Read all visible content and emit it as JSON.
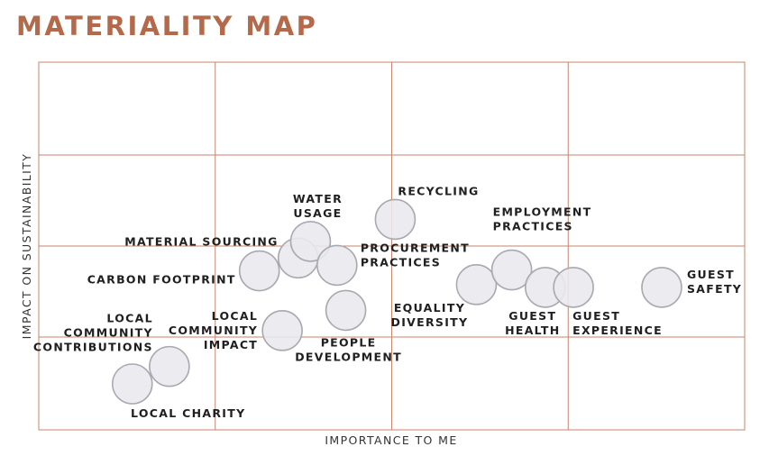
{
  "colors": {
    "title": "#b4694a",
    "grid": "#c7866b",
    "bubble_fill": "#e9e9ee",
    "bubble_stroke": "#a9a9b2",
    "text": "#1f1f1f"
  },
  "chart_data": {
    "type": "scatter",
    "title": "MATERIALITY MAP",
    "xlabel": "IMPORTANCE TO ME",
    "ylabel": "IMPACT ON SUSTAINABILITY",
    "xlim": [
      0,
      4
    ],
    "ylim": [
      0,
      4
    ],
    "grid": true,
    "grid_divisions": {
      "x": 4,
      "y": 4
    },
    "points": [
      {
        "label": [
          "LOCAL CHARITY"
        ],
        "x": 0.53,
        "y": 0.5
      },
      {
        "label": [
          "LOCAL",
          "COMMUNITY",
          "CONTRIBUTIONS"
        ],
        "x": 0.74,
        "y": 0.69
      },
      {
        "label": [
          "LOCAL",
          "COMMUNITY",
          "IMPACT"
        ],
        "x": 1.38,
        "y": 1.08
      },
      {
        "label": [
          "CARBON FOOTPRINT"
        ],
        "x": 1.25,
        "y": 1.73
      },
      {
        "label": [
          "MATERIAL SOURCING"
        ],
        "x": 1.47,
        "y": 1.87
      },
      {
        "label": [
          "WATER",
          "USAGE"
        ],
        "x": 1.54,
        "y": 2.05
      },
      {
        "label": [
          "PROCUREMENT",
          "PRACTICES"
        ],
        "x": 1.69,
        "y": 1.79
      },
      {
        "label": [
          "PEOPLE",
          "DEVELOPMENT"
        ],
        "x": 1.74,
        "y": 1.3
      },
      {
        "label": [
          "RECYCLING"
        ],
        "x": 2.02,
        "y": 2.29
      },
      {
        "label": [
          "EQUALITY",
          "DIVERSITY"
        ],
        "x": 2.48,
        "y": 1.58
      },
      {
        "label": [
          "EMPLOYMENT",
          "PRACTICES"
        ],
        "x": 2.68,
        "y": 1.74
      },
      {
        "label": [
          "GUEST",
          "HEALTH"
        ],
        "x": 2.87,
        "y": 1.55
      },
      {
        "label": [
          "GUEST",
          "EXPERIENCE"
        ],
        "x": 3.03,
        "y": 1.55
      },
      {
        "label": [
          "GUEST",
          "SAFETY"
        ],
        "x": 3.53,
        "y": 1.55
      }
    ]
  }
}
